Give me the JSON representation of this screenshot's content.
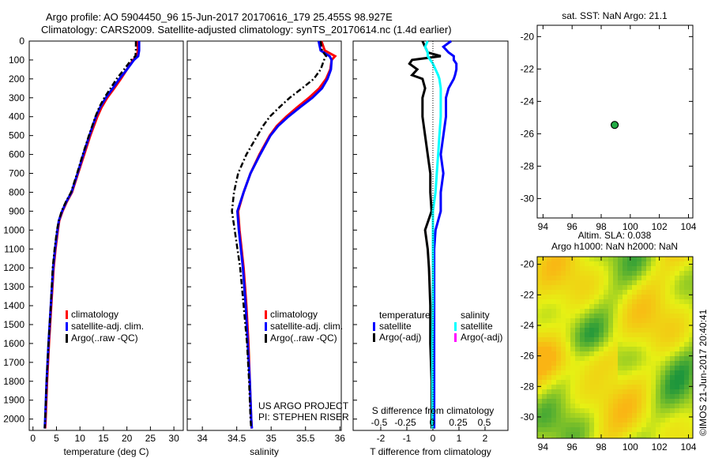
{
  "header": {
    "line1": "Argo profile: AO 5904450_96 15-Jun-2017 20170616_179 25.455S 98.927E",
    "line2": "Climatology: CARS2009. Satellite-adjusted climatology: synTS_20170614.nc (1.4d earlier)"
  },
  "footer_stamp": "©IMOS 21-Jun-2017 20:40:41",
  "colors": {
    "climatology": "#ff0000",
    "satellite": "#0000ff",
    "argo": "#000000",
    "sal_satellite": "#00ffff",
    "sal_argo": "#ff00ff"
  },
  "chart_data": [
    {
      "type": "line",
      "name": "temperature",
      "xlabel": "temperature (deg C)",
      "xlim": [
        -0.8,
        32
      ],
      "ylim": [
        2060,
        0
      ],
      "xticks": [
        "0",
        "5",
        "10",
        "15",
        "20",
        "25",
        "30"
      ],
      "yticks": [
        "0",
        "100",
        "200",
        "300",
        "400",
        "500",
        "600",
        "700",
        "800",
        "900",
        "1000",
        "1100",
        "1200",
        "1300",
        "1400",
        "1500",
        "1600",
        "1700",
        "1800",
        "1900",
        "2000"
      ],
      "depth": [
        0,
        50,
        80,
        100,
        150,
        200,
        250,
        300,
        350,
        400,
        500,
        600,
        700,
        800,
        850,
        900,
        950,
        1000,
        1100,
        1200,
        1400,
        1600,
        1800,
        2000,
        2050
      ],
      "series": [
        {
          "name": "climatology",
          "color": "#ff0000",
          "values": [
            22.3,
            22.3,
            22.2,
            21.3,
            20,
            18.7,
            17.3,
            15.8,
            14.6,
            13.7,
            12.2,
            10.9,
            9.6,
            8.3,
            7.2,
            6.3,
            5.6,
            5.3,
            4.8,
            4.4,
            3.9,
            3.4,
            3.0,
            2.7,
            2.6
          ]
        },
        {
          "name": "satellite-adj. clim.",
          "color": "#0000ff",
          "values": [
            22.6,
            22.6,
            22.4,
            21.5,
            20,
            18.4,
            17,
            15.5,
            14.3,
            13.4,
            12,
            10.7,
            9.5,
            8.2,
            7.1,
            6.2,
            5.5,
            5.2,
            4.7,
            4.3,
            3.8,
            3.3,
            2.9,
            2.6,
            2.5
          ]
        },
        {
          "name": "Argo(..raw -QC)",
          "color": "#000000",
          "values": [
            21.9,
            21.9,
            21.8,
            20.9,
            19.4,
            17.8,
            16.5,
            15.2,
            14.1,
            13.3,
            11.9,
            10.6,
            9.4,
            8.1,
            7.0,
            6.1,
            5.5,
            5.1,
            4.6,
            4.2,
            3.8,
            3.3,
            2.9,
            2.6,
            2.5
          ]
        }
      ],
      "legend": [
        "climatology",
        "satellite-adj. clim.",
        "Argo(..raw -QC)"
      ]
    },
    {
      "type": "line",
      "name": "salinity",
      "xlabel": "salinity",
      "xlim": [
        33.78,
        36.02
      ],
      "ylim": [
        2060,
        0
      ],
      "xticks": [
        "34",
        "34.5",
        "35",
        "35.5",
        "36"
      ],
      "depth": [
        0,
        50,
        80,
        100,
        150,
        200,
        250,
        300,
        350,
        400,
        450,
        500,
        600,
        700,
        800,
        900,
        1000,
        1200,
        1400,
        1600,
        1800,
        2000,
        2050
      ],
      "series": [
        {
          "name": "climatology",
          "color": "#ff0000",
          "values": [
            35.73,
            35.78,
            35.93,
            35.88,
            35.86,
            35.8,
            35.7,
            35.55,
            35.38,
            35.22,
            35.08,
            34.98,
            34.83,
            34.7,
            34.6,
            34.52,
            34.54,
            34.6,
            34.64,
            34.67,
            34.69,
            34.71,
            34.72
          ]
        },
        {
          "name": "satellite-adj. clim.",
          "color": "#0000ff",
          "values": [
            35.69,
            35.72,
            35.85,
            35.88,
            35.87,
            35.82,
            35.74,
            35.6,
            35.42,
            35.25,
            35.1,
            34.99,
            34.84,
            34.7,
            34.6,
            34.51,
            34.53,
            34.59,
            34.63,
            34.66,
            34.69,
            34.71,
            34.72
          ]
        },
        {
          "name": "Argo(..raw -QC)",
          "color": "#000000",
          "values": [
            35.72,
            35.74,
            35.8,
            35.77,
            35.72,
            35.62,
            35.45,
            35.27,
            35.12,
            34.98,
            34.88,
            34.8,
            34.64,
            34.52,
            34.46,
            34.43,
            34.47,
            34.55,
            34.6,
            34.65,
            34.68,
            34.7,
            34.71
          ]
        }
      ],
      "legend": [
        "climatology",
        "satellite-adj. clim.",
        "Argo(..raw -QC)"
      ],
      "annotations": [
        "US ARGO PROJECT",
        "PI: STEPHEN RISER"
      ]
    },
    {
      "type": "line",
      "name": "differences",
      "xlabel": "T difference from climatology",
      "xlabel2": "S difference from climatology",
      "xlim": [
        -3.06,
        2.88
      ],
      "ylim": [
        2060,
        0
      ],
      "xticks": [
        "-2",
        "-1",
        "0",
        "1",
        "2"
      ],
      "xticks2": [
        "-0.5",
        "-0.25",
        "0",
        "0.25",
        "0.5"
      ],
      "depth": [
        0,
        30,
        60,
        80,
        100,
        120,
        150,
        180,
        200,
        250,
        300,
        400,
        500,
        600,
        700,
        800,
        900,
        1000,
        1100,
        1200,
        1400,
        1600,
        1800,
        2000,
        2050
      ],
      "series": [
        {
          "name": "temperature satellite",
          "color": "#0000ff",
          "values": [
            0.7,
            0.4,
            0.6,
            0.8,
            0.8,
            0.9,
            0.9,
            0.85,
            0.8,
            0.6,
            0.5,
            0.5,
            0.4,
            0.3,
            0.4,
            0.3,
            0.3,
            0.1,
            0.05,
            0.05,
            0.05,
            0.05,
            0.05,
            0.05,
            0.05
          ]
        },
        {
          "name": "temperature Argo(-adj)",
          "color": "#000000",
          "values": [
            -0.4,
            -0.3,
            -0.2,
            0.3,
            -0.8,
            -0.9,
            -0.6,
            -0.8,
            -0.4,
            -0.3,
            -0.4,
            -0.4,
            -0.3,
            -0.2,
            -0.1,
            -0.1,
            -0.05,
            -0.3,
            -0.2,
            -0.15,
            -0.1,
            -0.1,
            -0.05,
            -0.05,
            -0.05
          ]
        },
        {
          "name": "salinity satellite",
          "color": "#00ffff",
          "values": [
            -0.2,
            -0.3,
            -0.2,
            -0.2,
            -0.1,
            0.0,
            0.1,
            0.2,
            0.25,
            0.3,
            0.3,
            0.3,
            0.25,
            0.2,
            0.15,
            0.1,
            0.0,
            0.0,
            0.0,
            0.0,
            0.0,
            -0.02,
            -0.02,
            -0.02,
            -0.02
          ]
        },
        {
          "name": "salinity Argo(-adj)",
          "color": "#ff00ff",
          "values": []
        }
      ],
      "legend": {
        "temperature_title": "temperature",
        "salinity_title": "salinity",
        "t_sat": "satellite",
        "t_argo": "Argo(-adj)",
        "s_sat": "satellite",
        "s_argo": "Argo(-adj)"
      }
    },
    {
      "type": "scatter",
      "name": "position-map",
      "title": "sat. SST: NaN Argo: 21.1",
      "xlim": [
        93.6,
        104.3
      ],
      "ylim": [
        -31.2,
        -19.3
      ],
      "xticks": [
        "94",
        "96",
        "98",
        "100",
        "102",
        "104"
      ],
      "yticks": [
        "-20",
        "-22",
        "-24",
        "-26",
        "-28",
        "-30"
      ],
      "points": [
        {
          "lon": 98.927,
          "lat": -25.455,
          "color": "#22aa44"
        }
      ]
    },
    {
      "type": "heatmap",
      "name": "sla-map",
      "title1": "Altim. SLA: 0.038",
      "title2": "Argo h1000: NaN h2000: NaN",
      "xlim": [
        93.6,
        104.3
      ],
      "ylim": [
        -31.4,
        -19.5
      ],
      "xticks": [
        "94",
        "96",
        "98",
        "100",
        "102",
        "104"
      ],
      "yticks": [
        "-20",
        "-22",
        "-24",
        "-26",
        "-28",
        "-30"
      ]
    }
  ]
}
